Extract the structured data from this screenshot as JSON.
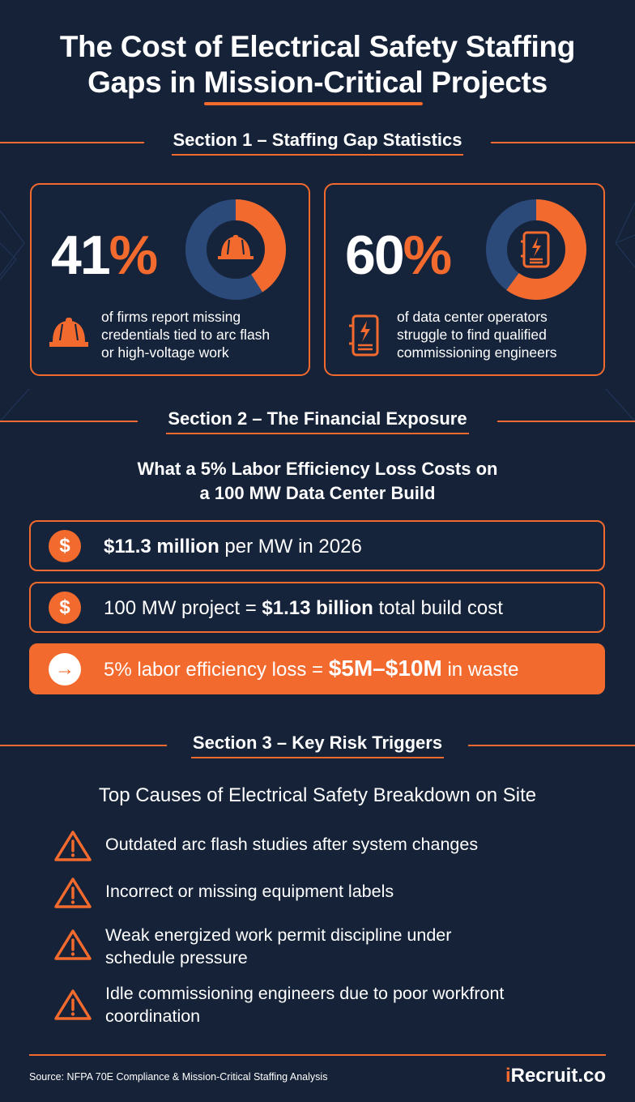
{
  "title": {
    "line1": "The Cost of Electrical Safety Staffing",
    "line2_prefix": "Gaps in ",
    "line2_underlined": "Mission-Critical",
    "line2_suffix": " Projects"
  },
  "section1": {
    "heading": "Section 1 – Staffing Gap Statistics",
    "stats": [
      {
        "value": "41",
        "unit": "%",
        "fraction": 0.41,
        "description_lines": [
          "of firms report missing",
          "credentials tied to arc flash",
          "or high-voltage work"
        ],
        "icon": "hard-hat-icon"
      },
      {
        "value": "60",
        "unit": "%",
        "fraction": 0.6,
        "description_lines": [
          "of data center operators",
          "struggle to find qualified",
          "commissioning engineers"
        ],
        "icon": "electrical-panel-icon"
      }
    ]
  },
  "section2": {
    "heading": "Section 2 – The Financial Exposure",
    "subtitle_line1": "What a 5% Labor Efficiency Loss Costs on",
    "subtitle_line2": "a 100 MW Data Center Build",
    "rows": [
      {
        "icon": "dollar-icon",
        "glyph": "$",
        "prefix": "",
        "bold": "$11.3 million",
        "suffix": " per MW in 2026"
      },
      {
        "icon": "dollar-icon",
        "glyph": "$",
        "prefix": "100 MW project = ",
        "bold": "$1.13 billion",
        "suffix": " total build cost"
      },
      {
        "icon": "arrow-right-icon",
        "glyph": "→",
        "prefix": "5% labor efficiency loss = ",
        "bold": "$5M–$10M",
        "suffix": " in waste"
      }
    ]
  },
  "section3": {
    "heading": "Section 3 – Key Risk Triggers",
    "subtitle": "Top Causes of Electrical Safety Breakdown on Site",
    "causes": [
      {
        "icon": "warning-icon",
        "lines": [
          "Outdated arc flash studies after system changes"
        ]
      },
      {
        "icon": "warning-icon",
        "lines": [
          "Incorrect or missing equipment labels"
        ]
      },
      {
        "icon": "warning-icon",
        "lines": [
          "Weak energized work permit discipline under",
          "schedule pressure"
        ]
      },
      {
        "icon": "warning-icon",
        "lines": [
          "Idle commissioning engineers due to poor workfront",
          "coordination"
        ]
      }
    ]
  },
  "footer": {
    "source": "Source: NFPA 70E Compliance & Mission-Critical Staffing Analysis",
    "brand_i": "i",
    "brand_rest": "Recruit.co"
  },
  "colors": {
    "background": "#152238",
    "accent": "#f26a2e",
    "donut_track": "#2b4a7a",
    "text": "#ffffff"
  }
}
